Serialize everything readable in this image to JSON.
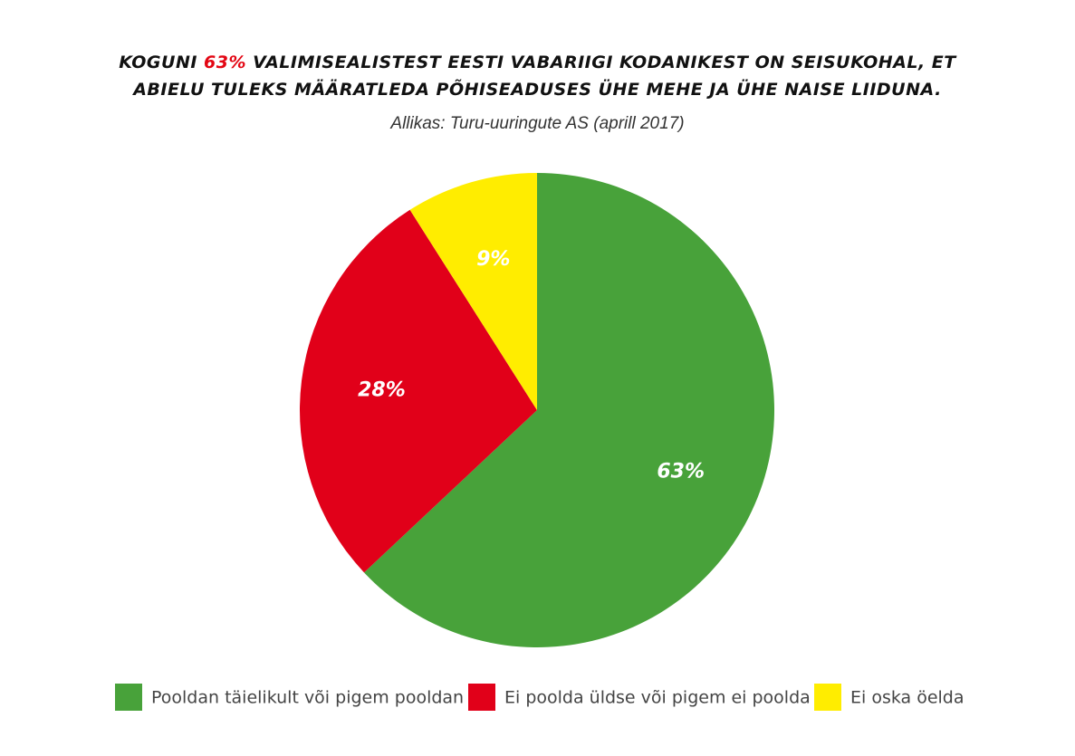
{
  "chart_data": {
    "type": "pie",
    "title_prefix": "KOGUNI",
    "title_highlight": "63%",
    "title_rest": "VALIMISEALISTEST EESTI VABARIIGI KODANIKEST ON SEISUKOHAL, ET",
    "title_line2": "ABIELU TULEKS MÄÄRATLEDA PÕHISEADUSES ÜHE MEHE JA ÜHE NAISE LIIDUNA.",
    "subtitle": "Allikas: Turu-uuringute AS (aprill 2017)",
    "highlight_color": "#e30613",
    "categories": [
      "Pooldan täielikult või pigem pooldan",
      "Ei poolda üldse või pigem ei poolda",
      "Ei oska öelda"
    ],
    "values": [
      63,
      28,
      9
    ],
    "value_labels": [
      "63%",
      "28%",
      "9%"
    ],
    "colors": [
      "#48a23a",
      "#e10019",
      "#ffed00"
    ]
  }
}
